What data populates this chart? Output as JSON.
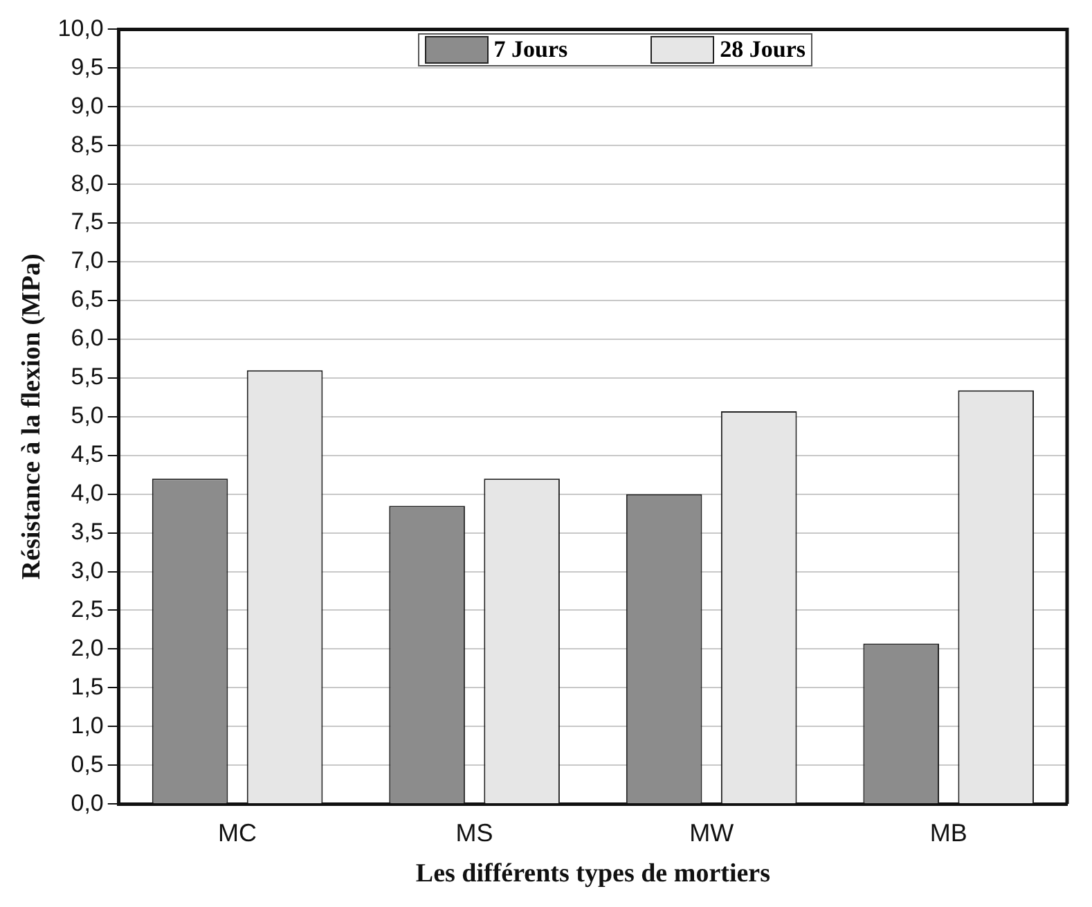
{
  "chart_data": {
    "type": "bar",
    "xlabel": "Les différents types de mortiers",
    "ylabel": "Résistance à la flexion (MPa)",
    "categories": [
      "MC",
      "MS",
      "MW",
      "MB"
    ],
    "series": [
      {
        "name": "7 Jours",
        "color": "#8c8c8c",
        "values": [
          4.2,
          3.85,
          4.0,
          2.07
        ]
      },
      {
        "name": "28 Jours",
        "color": "#e6e6e6",
        "values": [
          5.6,
          4.2,
          5.07,
          5.34
        ]
      }
    ],
    "ylim": [
      0,
      10
    ],
    "yticks": [
      {
        "value": 0,
        "label": "0,0"
      },
      {
        "value": 0.5,
        "label": "0,5"
      },
      {
        "value": 1,
        "label": "1,0"
      },
      {
        "value": 1.5,
        "label": "1,5"
      },
      {
        "value": 2,
        "label": "2,0"
      },
      {
        "value": 2.5,
        "label": "2,5"
      },
      {
        "value": 3,
        "label": "3,0"
      },
      {
        "value": 3.5,
        "label": "3,5"
      },
      {
        "value": 4,
        "label": "4,0"
      },
      {
        "value": 4.5,
        "label": "4,5"
      },
      {
        "value": 5,
        "label": "5,0"
      },
      {
        "value": 5.5,
        "label": "5,5"
      },
      {
        "value": 6,
        "label": "6,0"
      },
      {
        "value": 6.5,
        "label": "6,5"
      },
      {
        "value": 7,
        "label": "7,0"
      },
      {
        "value": 7.5,
        "label": "7,5"
      },
      {
        "value": 8,
        "label": "8,0"
      },
      {
        "value": 8.5,
        "label": "8,5"
      },
      {
        "value": 9,
        "label": "9,0"
      },
      {
        "value": 9.5,
        "label": "9,5"
      },
      {
        "value": 10,
        "label": "10,0"
      }
    ],
    "grid": "y",
    "legend": "top"
  }
}
